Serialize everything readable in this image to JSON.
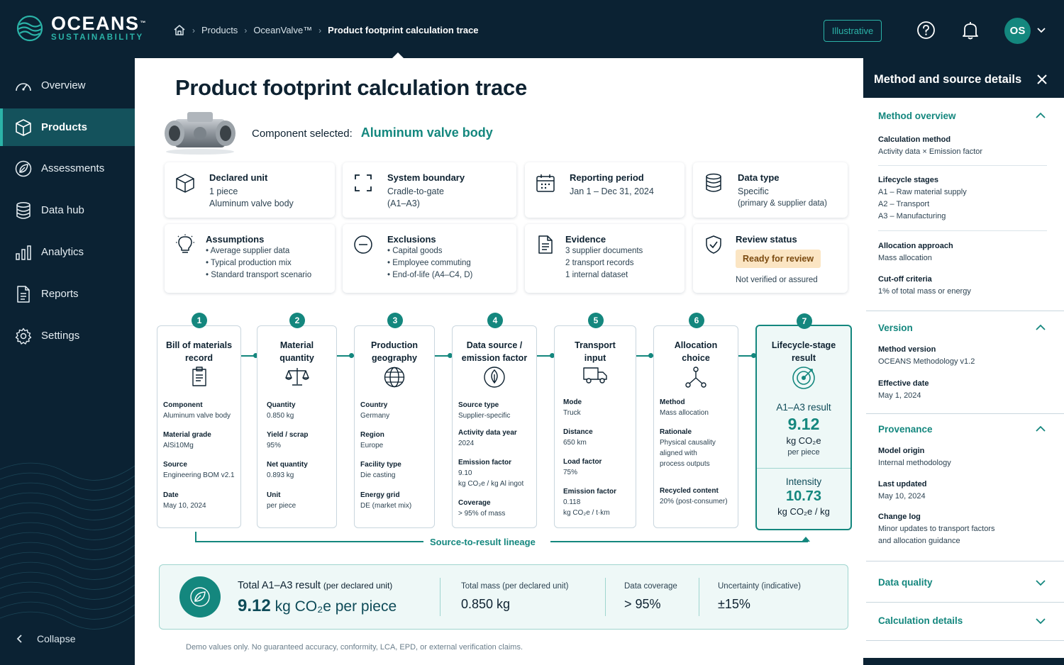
{
  "header": {
    "logo_name": "OCEANS",
    "logo_tm": "™",
    "logo_sub": "SUSTAINABILITY",
    "breadcrumbs": [
      "Products",
      "OceanValve™",
      "Product footprint calculation trace"
    ],
    "illustrative_label": "Illustrative",
    "avatar_initials": "OS"
  },
  "sidebar": {
    "items": [
      {
        "label": "Overview",
        "icon": "gauge-icon"
      },
      {
        "label": "Products",
        "icon": "cube-icon",
        "active": true
      },
      {
        "label": "Assessments",
        "icon": "leaf-icon"
      },
      {
        "label": "Data hub",
        "icon": "database-icon"
      },
      {
        "label": "Analytics",
        "icon": "bar-chart-icon"
      },
      {
        "label": "Reports",
        "icon": "document-icon"
      },
      {
        "label": "Settings",
        "icon": "gear-icon"
      }
    ],
    "collapse_label": "Collapse"
  },
  "main": {
    "title": "Product footprint calculation trace",
    "component_label": "Component selected:",
    "component_value": "Aluminum valve body",
    "cards": {
      "declared_unit": {
        "title": "Declared unit",
        "l1": "1 piece",
        "l2": "Aluminum valve body"
      },
      "system_boundary": {
        "title": "System boundary",
        "l1": "Cradle-to-gate",
        "l2": "(A1–A3)"
      },
      "reporting_period": {
        "title": "Reporting period",
        "l1": "Jan 1 – Dec 31, 2024"
      },
      "data_type": {
        "title": "Data type",
        "l1": "Specific",
        "l2": "(primary & supplier data)"
      },
      "assumptions": {
        "title": "Assumptions",
        "l1": "• Average supplier data",
        "l2": "• Typical production mix",
        "l3": "• Standard transport scenario"
      },
      "exclusions": {
        "title": "Exclusions",
        "l1": "• Capital goods",
        "l2": "• Employee commuting",
        "l3": "• End-of-life (A4–C4, D)"
      },
      "evidence": {
        "title": "Evidence",
        "l1": "3 supplier documents",
        "l2": "2 transport records",
        "l3": "1 internal dataset"
      },
      "review_status": {
        "title": "Review status",
        "badge": "Ready for review",
        "l1": "Not verified or assured"
      }
    },
    "steps": [
      {
        "num": "1",
        "title1": "Bill of materials",
        "title2": "record",
        "fields": [
          [
            "Component",
            "Aluminum valve body"
          ],
          [
            "Material grade",
            "AlSi10Mg"
          ],
          [
            "Source",
            "Engineering BOM v2.1"
          ],
          [
            "Date",
            "May 10, 2024"
          ]
        ]
      },
      {
        "num": "2",
        "title1": "Material",
        "title2": "quantity",
        "fields": [
          [
            "Quantity",
            "0.850 kg"
          ],
          [
            "Yield / scrap",
            "95%"
          ],
          [
            "Net quantity",
            "0.893 kg"
          ],
          [
            "Unit",
            "per piece"
          ]
        ]
      },
      {
        "num": "3",
        "title1": "Production",
        "title2": "geography",
        "fields": [
          [
            "Country",
            "Germany"
          ],
          [
            "Region",
            "Europe"
          ],
          [
            "Facility type",
            "Die casting"
          ],
          [
            "Energy grid",
            "DE (market mix)"
          ]
        ]
      },
      {
        "num": "4",
        "title1": "Data source /",
        "title2": "emission factor",
        "fields": [
          [
            "Source type",
            "Supplier-specific"
          ],
          [
            "Activity data year",
            "2024"
          ],
          [
            "Emission factor",
            "9.10",
            "kg CO₂e / kg Al ingot"
          ],
          [
            "Coverage",
            "> 95% of mass"
          ]
        ]
      },
      {
        "num": "5",
        "title1": "Transport",
        "title2": "input",
        "fields": [
          [
            "Mode",
            "Truck"
          ],
          [
            "Distance",
            "650 km"
          ],
          [
            "Load factor",
            "75%"
          ],
          [
            "Emission factor",
            "0.118",
            "kg CO₂e / t·km"
          ]
        ]
      },
      {
        "num": "6",
        "title1": "Allocation",
        "title2": "choice",
        "fields": [
          [
            "Method",
            "Mass allocation"
          ],
          [
            "Rationale",
            "Physical causality",
            "aligned with",
            "process outputs"
          ],
          [
            "Recycled content",
            "20% (post-consumer)"
          ]
        ]
      },
      {
        "num": "7",
        "title1": "Lifecycle-stage",
        "title2": "result"
      }
    ],
    "result": {
      "a_label": "A1–A3 result",
      "a_value": "9.12",
      "a_unit": "kg CO₂e",
      "a_per": "per piece",
      "i_label": "Intensity",
      "i_value": "10.73",
      "i_unit": "kg CO₂e / kg"
    },
    "lineage_label": "Source-to-result lineage",
    "total": {
      "label": "Total A1–A3 result",
      "label_small": "(per declared unit)",
      "value": "9.12",
      "unit": "kg CO₂e per piece",
      "mass_label": "Total mass (per declared unit)",
      "mass_value": "0.850 kg",
      "coverage_label": "Data coverage",
      "coverage_value": "> 95%",
      "uncertainty_label": "Uncertainty (indicative)",
      "uncertainty_value": "±15%"
    },
    "disclaimer": "Demo values only. No guaranteed accuracy, conformity, LCA, EPD, or external verification claims."
  },
  "panel": {
    "title": "Method and source details",
    "method_overview": {
      "title": "Method overview",
      "calc_label": "Calculation method",
      "calc_value": "Activity data × Emission factor",
      "stages_label": "Lifecycle stages",
      "stage1": "A1 – Raw material supply",
      "stage2": "A2 – Transport",
      "stage3": "A3 – Manufacturing",
      "alloc_label": "Allocation approach",
      "alloc_value": "Mass allocation",
      "cutoff_label": "Cut-off criteria",
      "cutoff_value": "1% of total mass or energy"
    },
    "version": {
      "title": "Version",
      "mv_label": "Method version",
      "mv_value": "OCEANS Methodology v1.2",
      "ed_label": "Effective date",
      "ed_value": "May 1, 2024"
    },
    "provenance": {
      "title": "Provenance",
      "mo_label": "Model origin",
      "mo_value": "Internal methodology",
      "lu_label": "Last updated",
      "lu_value": "May 10, 2024",
      "cl_label": "Change log",
      "cl_value1": "Minor updates to transport factors",
      "cl_value2": "and allocation guidance"
    },
    "data_quality": {
      "title": "Data quality"
    },
    "calc_details": {
      "title": "Calculation details"
    }
  }
}
